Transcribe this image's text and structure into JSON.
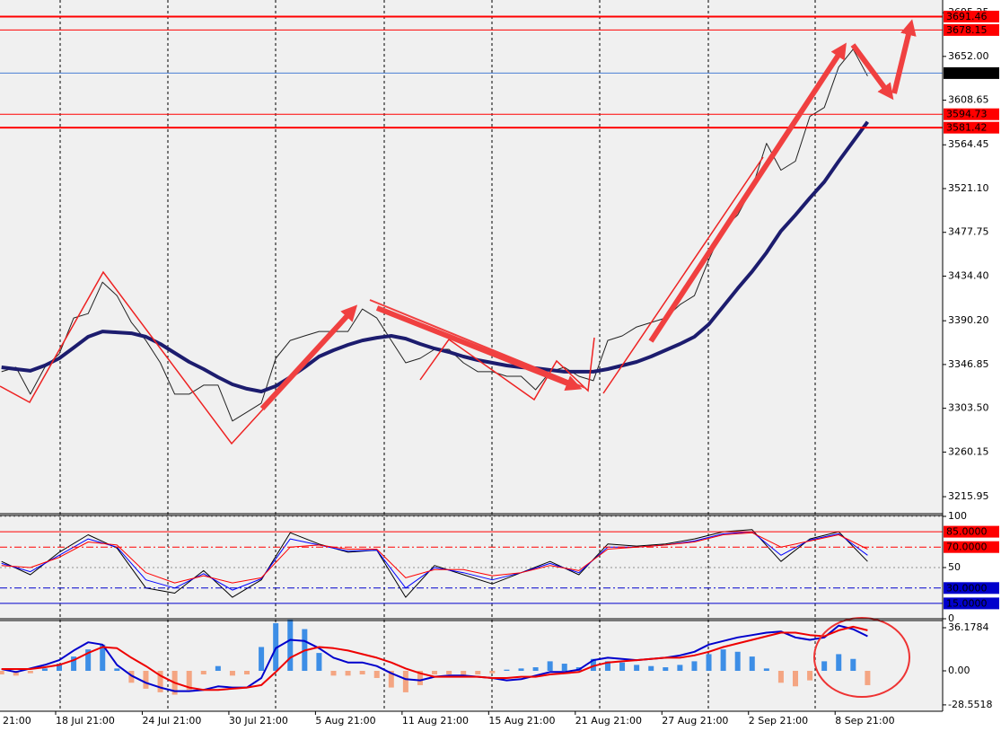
{
  "chart_data": [
    {
      "type": "line",
      "x": [
        9,
        13,
        17,
        21,
        25,
        29,
        33,
        37,
        41,
        45,
        49,
        53,
        57,
        61,
        65,
        69,
        73,
        77,
        81,
        85,
        89,
        93,
        97,
        101,
        105,
        109,
        113,
        117,
        121,
        125,
        129,
        133,
        137,
        141,
        145,
        149,
        153,
        157,
        161,
        165,
        169,
        173,
        177,
        181,
        185,
        189,
        193,
        197,
        201,
        205,
        209,
        213,
        217,
        221,
        225,
        229,
        233,
        237,
        241,
        245,
        249
      ],
      "xlim": [
        8.58,
        269.8
      ],
      "ylim": [
        3200.9,
        3705.2
      ],
      "yticks": [
        3695.25,
        {
          "value": 3652,
          "label": "3652.00"
        },
        3608.65,
        3564.45,
        {
          "value": 3521.1,
          "label": "3521.10"
        },
        3477.75,
        {
          "value": 3434.4,
          "label": "3434.40"
        },
        {
          "value": 3390.2,
          "label": "3390.20"
        },
        3346.85,
        {
          "value": 3303.5,
          "label": "3303.50"
        },
        3260.15,
        3215.95
      ],
      "grid": false,
      "series": [
        {
          "color": "#222222",
          "width": 1,
          "values": [
            3339.7,
            3344.1,
            3317.5,
            3344.1,
            3357.4,
            3392.9,
            3397.3,
            3428.4,
            3415.1,
            3388.5,
            3370.7,
            3348.5,
            3317.5,
            3317.5,
            3326.4,
            3326.4,
            3290.9,
            3299.7,
            3308.6,
            3353,
            3370.7,
            3375.2,
            3379.6,
            3379.6,
            3379.6,
            3401.8,
            3392.9,
            3370.7,
            3348.5,
            3353,
            3361.9,
            3361.9,
            3348.5,
            3339.7,
            3339.7,
            3335.2,
            3335.2,
            3321.9,
            3339.7,
            3344.1,
            3335.2,
            3330.8,
            3370.7,
            3375.2,
            3384,
            3388.5,
            3392.9,
            3406.2,
            3415.1,
            3450.6,
            3481.6,
            3494.9,
            3521.6,
            3565.9,
            3539.3,
            3548.2,
            3592.6,
            3601.4,
            3641.4,
            3659.1,
            3632.5
          ]
        },
        {
          "color": "#1c1c6e",
          "width": 4,
          "values": [
            3344.1,
            3342.3,
            3340.6,
            3345.9,
            3353,
            3363.6,
            3374.3,
            3379.6,
            3378.7,
            3377.8,
            3374.3,
            3367.2,
            3358.3,
            3349.4,
            3342.3,
            3334.3,
            3327.2,
            3322.8,
            3320.1,
            3325.5,
            3334.3,
            3344.1,
            3354.8,
            3361,
            3366.3,
            3370.7,
            3373.4,
            3375.2,
            3372.5,
            3367.2,
            3362.7,
            3359.2,
            3354.8,
            3351.2,
            3348.5,
            3345.9,
            3344.1,
            3343.2,
            3341.4,
            3339.7,
            3339.7,
            3339.7,
            3342.3,
            3345.9,
            3349.4,
            3354.8,
            3361,
            3367.2,
            3374.3,
            3386.7,
            3404.4,
            3422.2,
            3439,
            3457.7,
            3479,
            3494.9,
            3511.8,
            3527.8,
            3548.2,
            3567.7,
            3587.2
          ]
        }
      ],
      "levels": [
        {
          "value": 3691.46,
          "color": "#ff0000",
          "width": 2,
          "label_color": "#ff0000"
        },
        {
          "value": 3678.15,
          "color": "#ff0000",
          "width": 1,
          "label_color": "#ff0000"
        },
        {
          "value": 3635.47,
          "color": "#4a7fd4",
          "width": 1,
          "label_color": "#000000"
        },
        {
          "value": 3594.73,
          "color": "#ff0000",
          "width": 1,
          "label_color": "#ff0000"
        },
        {
          "value": 3581.42,
          "color": "#ff0000",
          "width": 2,
          "label_color": "#ff0000"
        }
      ]
    },
    {
      "type": "line",
      "x": [
        9,
        17,
        25,
        33,
        41,
        49,
        57,
        65,
        73,
        81,
        89,
        97,
        105,
        113,
        121,
        129,
        137,
        145,
        153,
        161,
        169,
        177,
        185,
        193,
        201,
        209,
        217,
        225,
        233,
        241,
        249
      ],
      "xlim": [
        8.58,
        269.8
      ],
      "ylim": [
        0,
        100
      ],
      "yticks": [
        100,
        50,
        0
      ],
      "grid": true,
      "series": [
        {
          "color": "#000000",
          "width": 1,
          "values": [
            56,
            43,
            65,
            82,
            69,
            30,
            25,
            47,
            21,
            38,
            84,
            73,
            65,
            67,
            21,
            52,
            43,
            34,
            45,
            56,
            43,
            73,
            71,
            73,
            78,
            85,
            87,
            56,
            78,
            85,
            56
          ]
        },
        {
          "color": "#0000ff",
          "width": 1,
          "values": [
            54,
            46,
            62,
            78,
            70,
            38,
            30,
            44,
            28,
            39,
            78,
            72,
            66,
            67,
            30,
            50,
            45,
            38,
            45,
            54,
            45,
            70,
            70,
            72,
            76,
            83,
            85,
            62,
            77,
            83,
            62
          ]
        },
        {
          "color": "#ff0000",
          "width": 1,
          "values": [
            52,
            50,
            60,
            75,
            72,
            45,
            35,
            42,
            35,
            40,
            70,
            72,
            68,
            68,
            40,
            48,
            48,
            42,
            45,
            52,
            47,
            68,
            70,
            72,
            75,
            82,
            84,
            70,
            76,
            82,
            68
          ]
        }
      ],
      "levels": [
        {
          "value": 85,
          "label": "85.0000",
          "color": "#ff0000",
          "width": 1,
          "label_color": "#ff0000",
          "dash": false
        },
        {
          "value": 70,
          "label": "70.0000",
          "color": "#ff0000",
          "width": 1,
          "label_color": "#ff0000",
          "dash": true
        },
        {
          "value": 30,
          "label": "30.0000",
          "color": "#0000cc",
          "width": 1,
          "label_color": "#0000cc",
          "dash": true
        },
        {
          "value": 15,
          "label": "15.0000",
          "color": "#0000cc",
          "width": 1,
          "label_color": "#0000cc",
          "dash": false
        }
      ]
    },
    {
      "type": "macd",
      "x": [
        9,
        13,
        17,
        21,
        25,
        29,
        33,
        37,
        41,
        45,
        49,
        53,
        57,
        61,
        65,
        69,
        73,
        77,
        81,
        85,
        89,
        93,
        97,
        101,
        105,
        109,
        113,
        117,
        121,
        125,
        129,
        133,
        137,
        141,
        145,
        149,
        153,
        157,
        161,
        165,
        169,
        173,
        177,
        181,
        185,
        189,
        193,
        197,
        201,
        205,
        209,
        213,
        217,
        221,
        225,
        229,
        233,
        237,
        241,
        245,
        249
      ],
      "xlim": [
        8.58,
        269.8
      ],
      "ylim": [
        -33.9,
        42.2
      ],
      "yticks": [
        36.1784,
        {
          "value": 0,
          "label": "0.00"
        },
        -28.5518
      ],
      "xticks": [
        {
          "value": 0,
          "label": "21:00"
        },
        {
          "value": 24,
          "label": "18 Jul 21:00"
        },
        {
          "value": 48,
          "label": "24 Jul 21:00"
        },
        {
          "value": 72,
          "label": "30 Jul 21:00"
        },
        {
          "value": 96,
          "label": "5 Aug 21:00"
        },
        {
          "value": 120,
          "label": "11 Aug 21:00"
        },
        {
          "value": 144,
          "label": "15 Aug 21:00"
        },
        {
          "value": 168,
          "label": "21 Aug 21:00"
        },
        {
          "value": 192,
          "label": "27 Aug 21:00"
        },
        {
          "value": 216,
          "label": "2 Sep 21:00"
        },
        {
          "value": 240,
          "label": "8 Sep 21:00"
        }
      ],
      "grid": false,
      "histogram": {
        "color": "#3d8ee6",
        "negative_color": "#f4a582",
        "values": [
          -3,
          -4,
          -2,
          2,
          6,
          12,
          18,
          22,
          2,
          -10,
          -15,
          -18,
          -20,
          -16,
          -3,
          4,
          -4,
          -3,
          20,
          40,
          43,
          35,
          15,
          -4,
          -4,
          -3,
          -6,
          -14,
          -18,
          -12,
          -3,
          -3,
          -4,
          -3,
          -2,
          1,
          2,
          3,
          8,
          6,
          3,
          10,
          8,
          7,
          5,
          4,
          3,
          5,
          8,
          14,
          18,
          16,
          12,
          2,
          -10,
          -13,
          -8,
          8,
          14,
          10,
          -12
        ]
      },
      "series": [
        {
          "color": "#0000cc",
          "width": 2,
          "values": [
            1.5,
            -1,
            2,
            5,
            9,
            17,
            24,
            22,
            5,
            -4,
            -10,
            -14,
            -17,
            -17,
            -16,
            -13,
            -14,
            -14,
            -6,
            19,
            26,
            25,
            19,
            11,
            7,
            7,
            4,
            -2,
            -7,
            -8,
            -5,
            -4,
            -4,
            -5,
            -6,
            -8,
            -7,
            -4,
            -1,
            -1,
            1,
            9,
            11,
            10,
            9,
            10,
            11,
            13,
            16,
            22,
            25,
            28,
            30,
            32,
            33,
            28,
            26,
            28,
            38,
            35,
            29
          ]
        },
        {
          "color": "#ee0000",
          "width": 2,
          "values": [
            1.5,
            1.5,
            1.5,
            3,
            5,
            9,
            15,
            20,
            19,
            11,
            4,
            -4,
            -10,
            -14,
            -16,
            -16,
            -15,
            -14,
            -12,
            -1,
            11,
            17,
            20,
            19,
            17,
            14,
            11,
            7,
            2,
            -2,
            -5,
            -5,
            -5,
            -5,
            -6,
            -6,
            -5,
            -5,
            -3,
            -2,
            -1,
            4,
            7,
            8,
            9,
            10,
            11,
            11,
            13,
            16,
            20,
            23,
            26,
            29,
            32,
            32,
            30,
            29,
            34,
            37,
            34
          ]
        }
      ]
    }
  ]
}
